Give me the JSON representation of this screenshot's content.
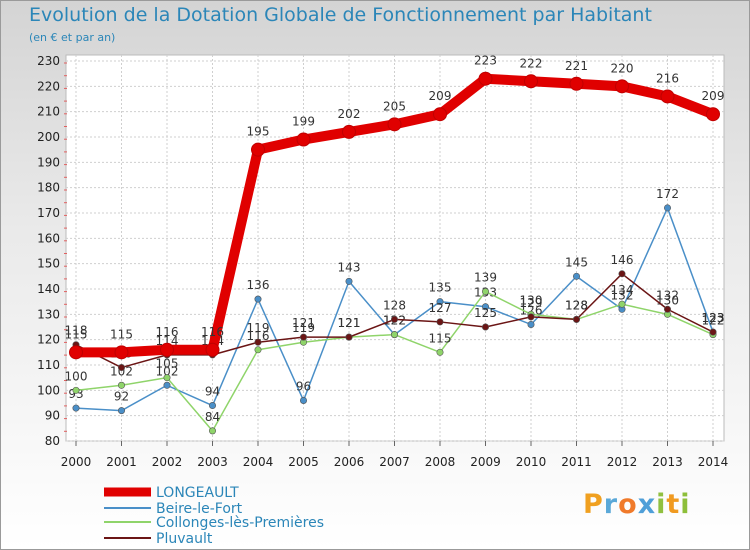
{
  "title": "Evolution de la Dotation Globale de Fonctionnement par Habitant",
  "subtitle": "(en € et par an)",
  "logo": "Proxiti",
  "chart_data": {
    "type": "line",
    "title": "Evolution de la Dotation Globale de Fonctionnement par Habitant",
    "subtitle": "(en € et par an)",
    "x": [
      "2000",
      "2001",
      "2002",
      "2003",
      "2004",
      "2005",
      "2006",
      "2007",
      "2008",
      "2009",
      "2010",
      "2011",
      "2012",
      "2013",
      "2014"
    ],
    "ylim": [
      80,
      230
    ],
    "yticks": [
      80,
      90,
      100,
      110,
      120,
      130,
      140,
      150,
      160,
      170,
      180,
      190,
      200,
      210,
      220,
      230
    ],
    "grid": true,
    "legend_position": "bottom-left",
    "series": [
      {
        "name": "LONGEAULT",
        "color": "#e00000",
        "values": [
          115,
          115,
          116,
          116,
          195,
          199,
          202,
          205,
          209,
          223,
          222,
          221,
          220,
          216,
          209
        ]
      },
      {
        "name": "Beire-le-Fort",
        "color": "#4a8fc8",
        "values": [
          93,
          92,
          102,
          94,
          136,
          96,
          143,
          122,
          135,
          133,
          126,
          145,
          132,
          172,
          123
        ]
      },
      {
        "name": "Collonges-lès-Premières",
        "color": "#8fd46a",
        "values": [
          100,
          102,
          105,
          84,
          116,
          119,
          121,
          122,
          115,
          139,
          130,
          128,
          134,
          130,
          122
        ]
      },
      {
        "name": "Pluvault",
        "color": "#6b1515",
        "values": [
          118,
          109,
          114,
          114,
          119,
          121,
          121,
          128,
          127,
          125,
          129,
          128,
          146,
          132,
          123
        ]
      }
    ]
  }
}
